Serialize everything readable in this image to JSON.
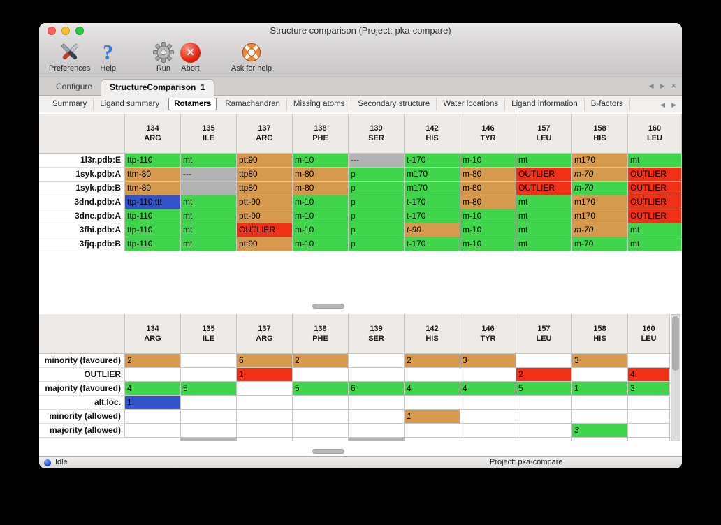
{
  "window": {
    "title": "Structure comparison (Project: pka-compare)"
  },
  "toolbar": {
    "items": [
      {
        "label": "Preferences"
      },
      {
        "label": "Help"
      },
      {
        "label": "Run"
      },
      {
        "label": "Abort"
      },
      {
        "label": "Ask for help"
      }
    ]
  },
  "tabs": {
    "items": [
      {
        "label": "Configure",
        "active": false
      },
      {
        "label": "StructureComparison_1",
        "active": true
      }
    ]
  },
  "subtabs": {
    "items": [
      {
        "label": "Summary",
        "active": false
      },
      {
        "label": "Ligand summary",
        "active": false
      },
      {
        "label": "Rotamers",
        "active": true
      },
      {
        "label": "Ramachandran",
        "active": false
      },
      {
        "label": "Missing atoms",
        "active": false
      },
      {
        "label": "Secondary structure",
        "active": false
      },
      {
        "label": "Water locations",
        "active": false
      },
      {
        "label": "Ligand information",
        "active": false
      },
      {
        "label": "B-factors",
        "active": false
      }
    ]
  },
  "colors": {
    "green": "#41d54d",
    "tan": "#d69a4e",
    "red": "#ee3117",
    "gray": "#b3b3b3",
    "blue": "#3452c9"
  },
  "columns": [
    {
      "num": "134",
      "res": "ARG"
    },
    {
      "num": "135",
      "res": "ILE"
    },
    {
      "num": "137",
      "res": "ARG"
    },
    {
      "num": "138",
      "res": "PHE"
    },
    {
      "num": "139",
      "res": "SER"
    },
    {
      "num": "142",
      "res": "HIS"
    },
    {
      "num": "146",
      "res": "TYR"
    },
    {
      "num": "157",
      "res": "LEU"
    },
    {
      "num": "158",
      "res": "HIS"
    },
    {
      "num": "160",
      "res": "LEU"
    }
  ],
  "upper_table": {
    "rows": [
      {
        "label": "1l3r.pdb:E",
        "cells": [
          {
            "t": "ttp-110",
            "c": "green"
          },
          {
            "t": "mt",
            "c": "green"
          },
          {
            "t": "ptt90",
            "c": "tan"
          },
          {
            "t": "m-10",
            "c": "green"
          },
          {
            "t": "---",
            "c": "gray"
          },
          {
            "t": "t-170",
            "c": "green"
          },
          {
            "t": "m-10",
            "c": "green"
          },
          {
            "t": "mt",
            "c": "green"
          },
          {
            "t": "m170",
            "c": "tan"
          },
          {
            "t": "mt",
            "c": "green"
          }
        ]
      },
      {
        "label": "1syk.pdb:A",
        "cells": [
          {
            "t": "ttm-80",
            "c": "tan"
          },
          {
            "t": "---",
            "c": "gray"
          },
          {
            "t": "ttp80",
            "c": "tan"
          },
          {
            "t": "m-80",
            "c": "tan"
          },
          {
            "t": "p",
            "c": "green"
          },
          {
            "t": "m170",
            "c": "green"
          },
          {
            "t": "m-80",
            "c": "tan"
          },
          {
            "t": "OUTLIER",
            "c": "red"
          },
          {
            "t": "m-70",
            "c": "tan",
            "i": true
          },
          {
            "t": "OUTLIER",
            "c": "red"
          }
        ]
      },
      {
        "label": "1syk.pdb:B",
        "cells": [
          {
            "t": "ttm-80",
            "c": "tan"
          },
          {
            "t": "",
            "c": "gray"
          },
          {
            "t": "ttp80",
            "c": "tan"
          },
          {
            "t": "m-80",
            "c": "tan"
          },
          {
            "t": "p",
            "c": "green"
          },
          {
            "t": "m170",
            "c": "green"
          },
          {
            "t": "m-80",
            "c": "tan"
          },
          {
            "t": "OUTLIER",
            "c": "red"
          },
          {
            "t": "m-70",
            "c": "green",
            "i": true
          },
          {
            "t": "OUTLIER",
            "c": "red"
          }
        ]
      },
      {
        "label": "3dnd.pdb:A",
        "cells": [
          {
            "t": "ttp-110,ttt",
            "c": "blue"
          },
          {
            "t": "mt",
            "c": "green"
          },
          {
            "t": "ptt-90",
            "c": "tan"
          },
          {
            "t": "m-10",
            "c": "green"
          },
          {
            "t": "p",
            "c": "green"
          },
          {
            "t": "t-170",
            "c": "green"
          },
          {
            "t": "m-80",
            "c": "tan"
          },
          {
            "t": "mt",
            "c": "green"
          },
          {
            "t": "m170",
            "c": "tan"
          },
          {
            "t": "OUTLIER",
            "c": "red"
          }
        ]
      },
      {
        "label": "3dne.pdb:A",
        "cells": [
          {
            "t": "ttp-110",
            "c": "green"
          },
          {
            "t": "mt",
            "c": "green"
          },
          {
            "t": "ptt-90",
            "c": "tan"
          },
          {
            "t": "m-10",
            "c": "green"
          },
          {
            "t": "p",
            "c": "green"
          },
          {
            "t": "t-170",
            "c": "green"
          },
          {
            "t": "m-10",
            "c": "green"
          },
          {
            "t": "mt",
            "c": "green"
          },
          {
            "t": "m170",
            "c": "tan"
          },
          {
            "t": "OUTLIER",
            "c": "red"
          }
        ]
      },
      {
        "label": "3fhi.pdb:A",
        "cells": [
          {
            "t": "ttp-110",
            "c": "green"
          },
          {
            "t": "mt",
            "c": "green"
          },
          {
            "t": "OUTLIER",
            "c": "red"
          },
          {
            "t": "m-10",
            "c": "green"
          },
          {
            "t": "p",
            "c": "green"
          },
          {
            "t": "t-90",
            "c": "tan",
            "i": true
          },
          {
            "t": "m-10",
            "c": "green"
          },
          {
            "t": "mt",
            "c": "green"
          },
          {
            "t": "m-70",
            "c": "tan",
            "i": true
          },
          {
            "t": "mt",
            "c": "green"
          }
        ]
      },
      {
        "label": "3fjq.pdb:B",
        "cells": [
          {
            "t": "ttp-110",
            "c": "green"
          },
          {
            "t": "mt",
            "c": "green"
          },
          {
            "t": "ptt90",
            "c": "tan"
          },
          {
            "t": "m-10",
            "c": "green"
          },
          {
            "t": "p",
            "c": "green"
          },
          {
            "t": "t-170",
            "c": "green"
          },
          {
            "t": "m-10",
            "c": "green"
          },
          {
            "t": "mt",
            "c": "green"
          },
          {
            "t": "m-70",
            "c": "green"
          },
          {
            "t": "mt",
            "c": "green"
          }
        ]
      }
    ]
  },
  "lower_table": {
    "partial_gray_columns": [
      1,
      4
    ],
    "rows": [
      {
        "label": "minority (favoured)",
        "cells": [
          {
            "t": "2",
            "c": "tan"
          },
          {},
          {
            "t": "6",
            "c": "tan"
          },
          {
            "t": "2",
            "c": "tan"
          },
          {},
          {
            "t": "2",
            "c": "tan"
          },
          {
            "t": "3",
            "c": "tan"
          },
          {},
          {
            "t": "3",
            "c": "tan"
          },
          {}
        ]
      },
      {
        "label": "OUTLIER",
        "cells": [
          {},
          {},
          {
            "t": "1",
            "c": "red"
          },
          {},
          {},
          {},
          {},
          {
            "t": "2",
            "c": "red"
          },
          {},
          {
            "t": "4",
            "c": "red"
          }
        ]
      },
      {
        "label": "majority (favoured)",
        "cells": [
          {
            "t": "4",
            "c": "green"
          },
          {
            "t": "5",
            "c": "green"
          },
          {},
          {
            "t": "5",
            "c": "green"
          },
          {
            "t": "6",
            "c": "green"
          },
          {
            "t": "4",
            "c": "green"
          },
          {
            "t": "4",
            "c": "green"
          },
          {
            "t": "5",
            "c": "green"
          },
          {
            "t": "1",
            "c": "green"
          },
          {
            "t": "3",
            "c": "green"
          }
        ]
      },
      {
        "label": "alt.loc.",
        "cells": [
          {
            "t": "1",
            "c": "blue"
          },
          {},
          {},
          {},
          {},
          {},
          {},
          {},
          {},
          {}
        ]
      },
      {
        "label": "minority (allowed)",
        "cells": [
          {},
          {},
          {},
          {},
          {},
          {
            "t": "1",
            "c": "tan",
            "i": true
          },
          {},
          {},
          {},
          {}
        ]
      },
      {
        "label": "majority (allowed)",
        "cells": [
          {},
          {},
          {},
          {},
          {},
          {},
          {},
          {},
          {
            "t": "3",
            "c": "green",
            "i": true
          },
          {}
        ]
      }
    ]
  },
  "statusbar": {
    "status": "Idle",
    "project": "Project: pka-compare"
  }
}
